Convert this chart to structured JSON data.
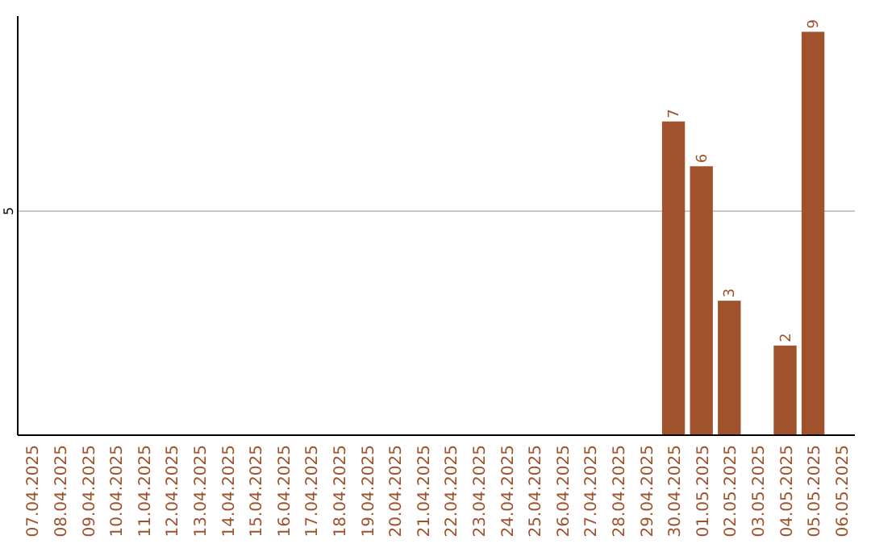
{
  "chart_data": {
    "type": "bar",
    "categories": [
      "07.04.2025",
      "08.04.2025",
      "09.04.2025",
      "10.04.2025",
      "11.04.2025",
      "12.04.2025",
      "13.04.2025",
      "14.04.2025",
      "15.04.2025",
      "16.04.2025",
      "17.04.2025",
      "18.04.2025",
      "19.04.2025",
      "20.04.2025",
      "21.04.2025",
      "22.04.2025",
      "23.04.2025",
      "24.04.2025",
      "25.04.2025",
      "26.04.2025",
      "27.04.2025",
      "28.04.2025",
      "29.04.2025",
      "30.04.2025",
      "01.05.2025",
      "02.05.2025",
      "03.05.2025",
      "04.05.2025",
      "05.05.2025",
      "06.05.2025"
    ],
    "values": [
      null,
      null,
      null,
      null,
      null,
      null,
      null,
      null,
      null,
      null,
      null,
      null,
      null,
      null,
      null,
      null,
      null,
      null,
      null,
      null,
      null,
      null,
      null,
      7,
      6,
      3,
      null,
      2,
      9,
      null
    ],
    "color": "#a0522d",
    "ylim": [
      0,
      9.35
    ],
    "yticks": [
      5
    ],
    "grid": "y",
    "data_labels": true
  }
}
